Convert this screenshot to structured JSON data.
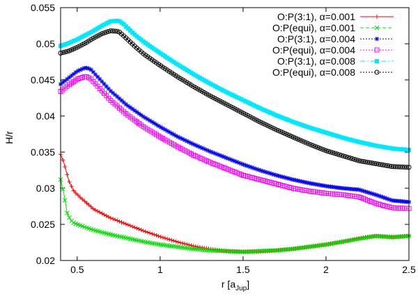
{
  "chart_data": {
    "type": "line",
    "title": "",
    "xlabel_main": "r [a",
    "xlabel_sub": "Jup",
    "xlabel_close": "]",
    "ylabel": "H/r",
    "xlim": [
      0.4,
      2.5
    ],
    "ylim": [
      0.02,
      0.055
    ],
    "xticks": [
      0.5,
      1,
      1.5,
      2,
      2.5
    ],
    "xtick_labels": [
      "0.5",
      "1",
      "1.5",
      "2",
      "2.5"
    ],
    "yticks": [
      0.02,
      0.025,
      0.03,
      0.035,
      0.04,
      0.045,
      0.05,
      0.055
    ],
    "ytick_labels": [
      "0.02",
      "0.025",
      "0.03",
      "0.035",
      "0.04",
      "0.045",
      "0.05",
      "0.055"
    ],
    "legend_position": "top-right",
    "series": [
      {
        "name": "O:P(3:1), α=0.001",
        "color": "#ff0000",
        "marker": "plus",
        "dash": "solid",
        "x": [
          0.4,
          0.42,
          0.45,
          0.48,
          0.52,
          0.56,
          0.6,
          0.7,
          0.8,
          0.9,
          1.0,
          1.1,
          1.2,
          1.3,
          1.4,
          1.5,
          1.6,
          1.7,
          1.8,
          1.9,
          2.0,
          2.1,
          2.2,
          2.3,
          2.4,
          2.5
        ],
        "y": [
          0.0347,
          0.0335,
          0.031,
          0.0296,
          0.0287,
          0.0279,
          0.0271,
          0.0259,
          0.025,
          0.0241,
          0.0233,
          0.0226,
          0.022,
          0.0216,
          0.0213,
          0.0212,
          0.0212,
          0.0214,
          0.0216,
          0.0219,
          0.0222,
          0.0226,
          0.0231,
          0.0234,
          0.0233,
          0.0234
        ]
      },
      {
        "name": "O:P(equi), α=0.001",
        "color": "#00dd00",
        "marker": "x",
        "dash": "dashed",
        "x": [
          0.4,
          0.42,
          0.44,
          0.46,
          0.48,
          0.5,
          0.55,
          0.6,
          0.7,
          0.8,
          0.9,
          1.0,
          1.1,
          1.2,
          1.3,
          1.4,
          1.5,
          1.6,
          1.7,
          1.8,
          1.9,
          2.0,
          2.1,
          2.2,
          2.3,
          2.4,
          2.5
        ],
        "y": [
          0.0312,
          0.0292,
          0.0265,
          0.0256,
          0.0252,
          0.025,
          0.0246,
          0.0242,
          0.0236,
          0.0231,
          0.0226,
          0.0222,
          0.0219,
          0.0216,
          0.0214,
          0.0213,
          0.0212,
          0.0213,
          0.0214,
          0.0216,
          0.0219,
          0.0222,
          0.0226,
          0.023,
          0.0234,
          0.0232,
          0.0234
        ]
      },
      {
        "name": "O:P(3:1), α=0.004",
        "color": "#0000ff",
        "marker": "star",
        "dash": "dotted",
        "x": [
          0.4,
          0.45,
          0.5,
          0.55,
          0.58,
          0.62,
          0.7,
          0.8,
          0.9,
          1.0,
          1.1,
          1.2,
          1.3,
          1.4,
          1.5,
          1.6,
          1.7,
          1.8,
          1.9,
          2.0,
          2.1,
          2.2,
          2.3,
          2.4,
          2.5
        ],
        "y": [
          0.0444,
          0.0453,
          0.0462,
          0.0467,
          0.0465,
          0.0455,
          0.0435,
          0.0415,
          0.0399,
          0.0385,
          0.0372,
          0.0361,
          0.0351,
          0.0342,
          0.0333,
          0.0325,
          0.0318,
          0.0312,
          0.0307,
          0.0303,
          0.03,
          0.0298,
          0.0291,
          0.0283,
          0.0281
        ]
      },
      {
        "name": "O:P(equi), α=0.004",
        "color": "#ff00ff",
        "marker": "square",
        "dash": "dotted",
        "x": [
          0.4,
          0.45,
          0.5,
          0.55,
          0.58,
          0.62,
          0.7,
          0.8,
          0.9,
          1.0,
          1.1,
          1.2,
          1.3,
          1.4,
          1.5,
          1.6,
          1.7,
          1.8,
          1.9,
          2.0,
          2.1,
          2.2,
          2.3,
          2.4,
          2.5
        ],
        "y": [
          0.0434,
          0.0443,
          0.0451,
          0.0455,
          0.0452,
          0.0442,
          0.0422,
          0.0402,
          0.0385,
          0.0371,
          0.0358,
          0.0346,
          0.0336,
          0.0327,
          0.0318,
          0.0312,
          0.0306,
          0.03,
          0.0296,
          0.0293,
          0.0291,
          0.0288,
          0.0279,
          0.0273,
          0.0272
        ]
      },
      {
        "name": "O:P(3:1), α=0.008",
        "color": "#00e8ff",
        "marker": "filled-square",
        "dash": "dashdot",
        "x": [
          0.4,
          0.45,
          0.5,
          0.55,
          0.6,
          0.65,
          0.7,
          0.75,
          0.78,
          0.85,
          0.9,
          1.0,
          1.1,
          1.2,
          1.3,
          1.4,
          1.5,
          1.6,
          1.7,
          1.8,
          1.9,
          2.0,
          2.1,
          2.2,
          2.3,
          2.4,
          2.5
        ],
        "y": [
          0.0497,
          0.0501,
          0.0506,
          0.0512,
          0.0518,
          0.0525,
          0.0531,
          0.0532,
          0.0527,
          0.0512,
          0.0503,
          0.0487,
          0.0472,
          0.0458,
          0.0445,
          0.0433,
          0.0422,
          0.0411,
          0.0401,
          0.0392,
          0.0384,
          0.0377,
          0.037,
          0.0364,
          0.0359,
          0.0355,
          0.0353
        ]
      },
      {
        "name": "O:P(equi), α=0.008",
        "color": "#000000",
        "marker": "circle",
        "dash": "dotted",
        "x": [
          0.4,
          0.45,
          0.5,
          0.55,
          0.6,
          0.65,
          0.7,
          0.75,
          0.78,
          0.85,
          0.9,
          1.0,
          1.1,
          1.2,
          1.3,
          1.4,
          1.5,
          1.6,
          1.7,
          1.8,
          1.9,
          2.0,
          2.1,
          2.2,
          2.3,
          2.4,
          2.5
        ],
        "y": [
          0.0487,
          0.049,
          0.0495,
          0.0501,
          0.0508,
          0.0514,
          0.0518,
          0.0517,
          0.0511,
          0.0496,
          0.0486,
          0.047,
          0.0455,
          0.0441,
          0.0428,
          0.0416,
          0.0404,
          0.0392,
          0.0381,
          0.0371,
          0.0361,
          0.0352,
          0.0345,
          0.0338,
          0.0334,
          0.033,
          0.0329
        ]
      }
    ]
  }
}
